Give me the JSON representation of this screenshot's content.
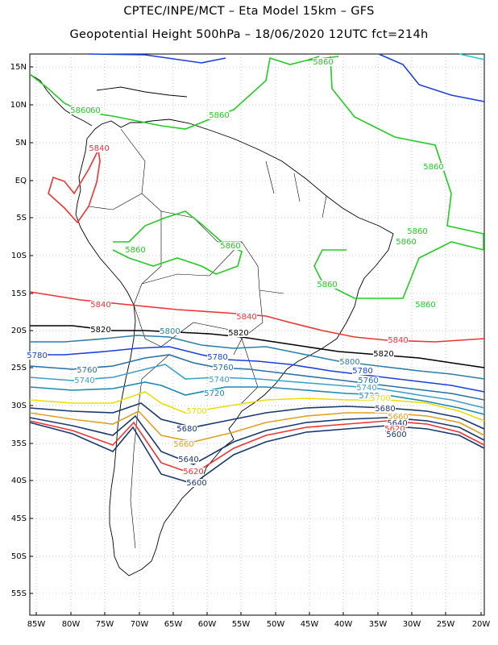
{
  "title_line1": "CPTEC/INPE/MCT –  Eta Model 15km – GFS",
  "title_line2": "Geopotential Height 500hPa – 18/06/2020 12UTC fct=214h",
  "lat_ticks": [
    "15N",
    "10N",
    "5N",
    "EQ",
    "5S",
    "10S",
    "15S",
    "20S",
    "25S",
    "30S",
    "35S",
    "40S",
    "45S",
    "50S",
    "55S"
  ],
  "lon_ticks": [
    "85W",
    "80W",
    "75W",
    "70W",
    "65W",
    "60W",
    "55W",
    "50W",
    "45W",
    "40W",
    "35W",
    "30W",
    "25W",
    "20W"
  ],
  "contour_labels": [
    {
      "text": "5860",
      "color": "#22cc22"
    },
    {
      "text": "5860",
      "color": "#22cc22"
    },
    {
      "text": "5860",
      "color": "#22cc22"
    },
    {
      "text": "5860",
      "color": "#22cc22"
    },
    {
      "text": "5860",
      "color": "#22cc22"
    },
    {
      "text": "5860",
      "color": "#22cc22"
    },
    {
      "text": "5860",
      "color": "#22cc22"
    },
    {
      "text": "5860",
      "color": "#22cc22"
    },
    {
      "text": "5860",
      "color": "#22cc22"
    },
    {
      "text": "5860",
      "color": "#22cc22"
    },
    {
      "text": "5860",
      "color": "#22cc22"
    },
    {
      "text": "5840",
      "color": "#ee3333"
    },
    {
      "text": "5840",
      "color": "#ee3333"
    },
    {
      "text": "5840",
      "color": "#ee3333"
    },
    {
      "text": "5840",
      "color": "#ee3333"
    },
    {
      "text": "5820",
      "color": "#000000"
    },
    {
      "text": "5820",
      "color": "#000000"
    },
    {
      "text": "5820",
      "color": "#000000"
    },
    {
      "text": "5800",
      "color": "#2a7fa8"
    },
    {
      "text": "5800",
      "color": "#2a7fa8"
    },
    {
      "text": "5780",
      "color": "#1a3fe0"
    },
    {
      "text": "5780",
      "color": "#1a3fe0"
    },
    {
      "text": "5780",
      "color": "#1a3fe0"
    },
    {
      "text": "5760",
      "color": "#2a6fa8"
    },
    {
      "text": "5760",
      "color": "#2a6fa8"
    },
    {
      "text": "5760",
      "color": "#2a6fa8"
    },
    {
      "text": "5740",
      "color": "#3aa0c8"
    },
    {
      "text": "5740",
      "color": "#3aa0c8"
    },
    {
      "text": "5740",
      "color": "#3aa0c8"
    },
    {
      "text": "5720",
      "color": "#1a8ab0"
    },
    {
      "text": "5720",
      "color": "#1a8ab0"
    },
    {
      "text": "5700",
      "color": "#eedd00"
    },
    {
      "text": "5700",
      "color": "#eedd00"
    },
    {
      "text": "5680",
      "color": "#183870"
    },
    {
      "text": "5680",
      "color": "#183870"
    },
    {
      "text": "5660",
      "color": "#e0a020"
    },
    {
      "text": "5660",
      "color": "#e0a020"
    },
    {
      "text": "5640",
      "color": "#183870"
    },
    {
      "text": "5640",
      "color": "#183870"
    },
    {
      "text": "5620",
      "color": "#ee3333"
    },
    {
      "text": "5620",
      "color": "#ee3333"
    },
    {
      "text": "5600",
      "color": "#183870"
    },
    {
      "text": "5600",
      "color": "#183870"
    }
  ],
  "colors": {
    "contour_5860": "#22cc22",
    "contour_5840": "#ee3333",
    "contour_5820": "#000000",
    "contour_blue": "#1a3fe0",
    "contour_5700": "#eedd00",
    "contour_5660": "#e0a020",
    "contour_dark": "#183870",
    "coastline": "#000000",
    "grid": "#999999"
  }
}
